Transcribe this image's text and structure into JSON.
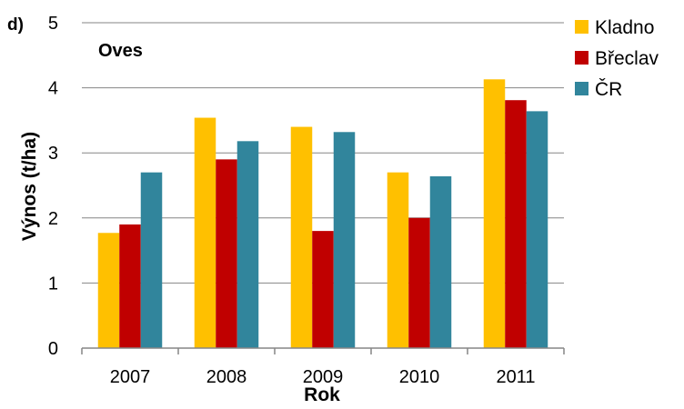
{
  "chart_data": {
    "type": "bar",
    "panel_label": "d)",
    "title": "Oves",
    "xlabel": "Rok",
    "ylabel": "Výnos (t/ha)",
    "ylim": [
      0,
      5
    ],
    "yticks": [
      "0",
      "1",
      "2",
      "3",
      "4",
      "5"
    ],
    "grid": true,
    "legend_position": "right",
    "categories": [
      "2007",
      "2008",
      "2009",
      "2010",
      "2011"
    ],
    "series": [
      {
        "name": "Kladno",
        "color": "#FFC000",
        "values": [
          1.77,
          3.54,
          3.4,
          2.7,
          4.13
        ]
      },
      {
        "name": "Břeclav",
        "color": "#C00000",
        "values": [
          1.9,
          2.9,
          1.8,
          2.0,
          3.81
        ]
      },
      {
        "name": "ČR",
        "color": "#31859C",
        "values": [
          2.7,
          3.18,
          3.32,
          2.64,
          3.64
        ]
      }
    ]
  }
}
